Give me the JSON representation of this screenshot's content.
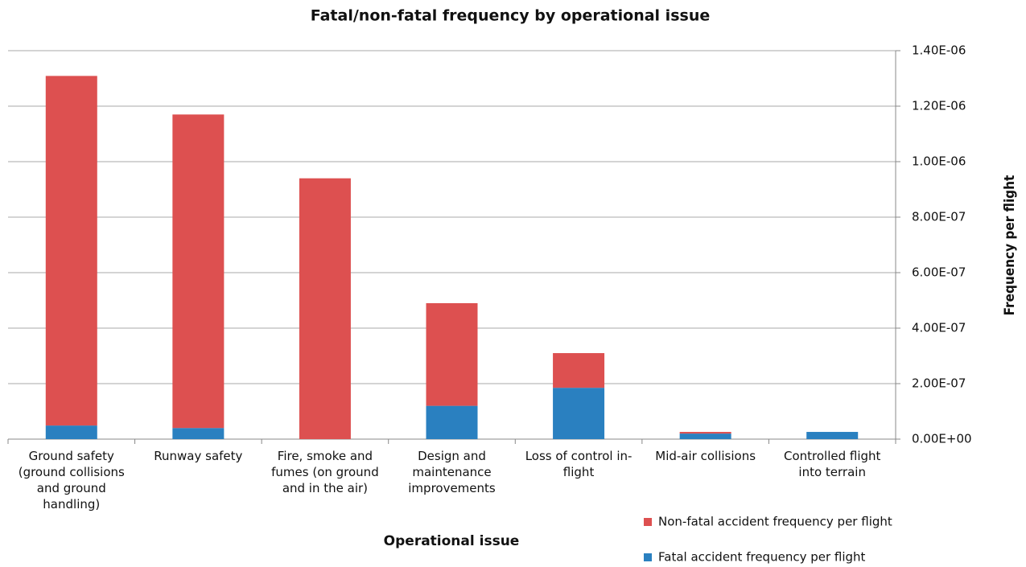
{
  "chart_data": {
    "type": "stacked_bar",
    "title": "Fatal/non-fatal frequency by operational issue",
    "x_label": "Operational issue",
    "y_label": "Frequency per flight",
    "categories": [
      "Ground safety (ground collisions and ground handling)",
      "Runway safety",
      "Fire, smoke and fumes (on ground and in the air)",
      "Design and maintenance improvements",
      "Loss of control in-flight",
      "Mid-air collisions",
      "Controlled flight into terrain"
    ],
    "series": [
      {
        "name": "Fatal accident frequency per flight",
        "color": "#2a80c0",
        "values": [
          4.9e-08,
          4e-08,
          0,
          1.2e-07,
          1.85e-07,
          2e-08,
          2.6e-08
        ]
      },
      {
        "name": "Non-fatal accident frequency per flight",
        "color": "#dd5050",
        "values": [
          1.26e-06,
          1.13e-06,
          9.4e-07,
          3.7e-07,
          1.25e-07,
          6e-09,
          0
        ]
      }
    ],
    "ylim": [
      0,
      1.4e-06
    ],
    "yticks": [
      {
        "value": 0,
        "label": "0.00E+00"
      },
      {
        "value": 2e-07,
        "label": "2.00E-07"
      },
      {
        "value": 4e-07,
        "label": "4.00E-07"
      },
      {
        "value": 6e-07,
        "label": "6.00E-07"
      },
      {
        "value": 8e-07,
        "label": "8.00E-07"
      },
      {
        "value": 1e-06,
        "label": "1.00E-06"
      },
      {
        "value": 1.2e-06,
        "label": "1.20E-06"
      },
      {
        "value": 1.4e-06,
        "label": "1.40E-06"
      }
    ],
    "y_axis_side": "right",
    "grid": true,
    "legend": "bottom-right"
  }
}
